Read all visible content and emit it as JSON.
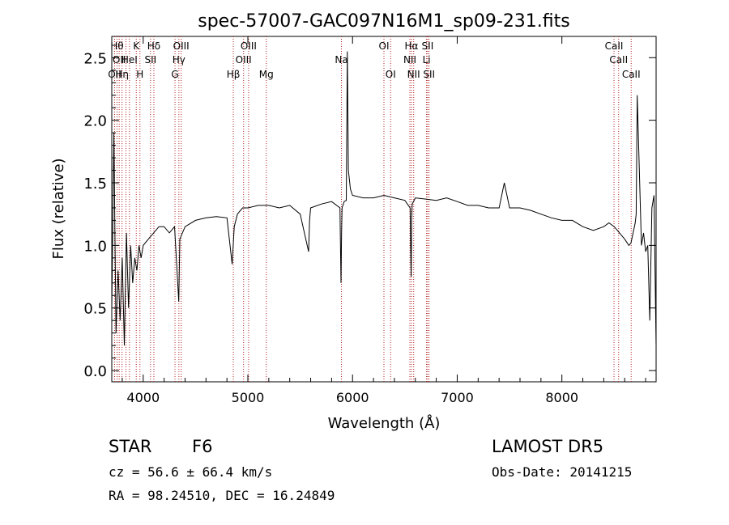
{
  "chart_data": {
    "type": "line",
    "title": "spec-57007-GAC097N16M1_sp09-231.fits",
    "xlabel": "Wavelength (Å)",
    "ylabel": "Flux (relative)",
    "xlim": [
      3700,
      8900
    ],
    "ylim": [
      -0.09,
      2.67
    ],
    "x_ticks": [
      {
        "value": 4000,
        "label": "4000"
      },
      {
        "value": 5000,
        "label": "5000"
      },
      {
        "value": 6000,
        "label": "6000"
      },
      {
        "value": 7000,
        "label": "7000"
      },
      {
        "value": 8000,
        "label": "8000"
      }
    ],
    "y_ticks": [
      {
        "value": 0.0,
        "label": "0.0"
      },
      {
        "value": 0.5,
        "label": "0.5"
      },
      {
        "value": 1.0,
        "label": "1.0"
      },
      {
        "value": 1.5,
        "label": "1.5"
      },
      {
        "value": 2.0,
        "label": "2.0"
      },
      {
        "value": 2.5,
        "label": "2.5"
      }
    ],
    "grid": false,
    "line_color": "#000000",
    "marker_color": "#b22222",
    "series": [
      {
        "x": [
          3700,
          3720,
          3740,
          3760,
          3780,
          3800,
          3820,
          3840,
          3860,
          3880,
          3900,
          3920,
          3940,
          3960,
          3980,
          4000,
          4050,
          4100,
          4150,
          4200,
          4250,
          4300,
          4330,
          4340,
          4350,
          4400,
          4500,
          4600,
          4700,
          4800,
          4850,
          4860,
          4870,
          4900,
          4950,
          5000,
          5100,
          5200,
          5300,
          5400,
          5500,
          5580,
          5590,
          5600,
          5700,
          5800,
          5880,
          5890,
          5895,
          5900,
          5920,
          5940,
          5950,
          5960,
          5980,
          6000,
          6100,
          6200,
          6300,
          6400,
          6500,
          6550,
          6560,
          6565,
          6570,
          6600,
          6700,
          6800,
          6900,
          7000,
          7100,
          7200,
          7300,
          7400,
          7450,
          7500,
          7600,
          7700,
          7800,
          7900,
          8000,
          8100,
          8200,
          8300,
          8400,
          8450,
          8500,
          8550,
          8600,
          8640,
          8660,
          8680,
          8700,
          8710,
          8720,
          8740,
          8760,
          8780,
          8800,
          8820,
          8840,
          8860,
          8880,
          8900
        ],
        "y": [
          0.5,
          1.9,
          0.3,
          0.8,
          0.4,
          0.9,
          0.2,
          1.1,
          0.5,
          1.0,
          0.7,
          0.9,
          0.8,
          1.0,
          0.9,
          1.0,
          1.05,
          1.1,
          1.15,
          1.15,
          1.1,
          1.15,
          0.7,
          0.55,
          1.05,
          1.15,
          1.2,
          1.22,
          1.23,
          1.22,
          0.85,
          1.0,
          1.15,
          1.25,
          1.3,
          1.3,
          1.32,
          1.32,
          1.3,
          1.32,
          1.25,
          0.95,
          1.2,
          1.3,
          1.33,
          1.35,
          1.3,
          0.7,
          1.1,
          1.3,
          1.35,
          1.36,
          2.55,
          1.6,
          1.45,
          1.4,
          1.38,
          1.38,
          1.4,
          1.38,
          1.36,
          1.3,
          0.75,
          1.2,
          1.33,
          1.38,
          1.37,
          1.36,
          1.38,
          1.35,
          1.32,
          1.32,
          1.3,
          1.3,
          1.5,
          1.3,
          1.3,
          1.28,
          1.25,
          1.22,
          1.2,
          1.2,
          1.15,
          1.12,
          1.15,
          1.18,
          1.15,
          1.1,
          1.05,
          1.0,
          1.02,
          1.1,
          1.18,
          1.25,
          2.2,
          1.6,
          1.0,
          1.1,
          0.95,
          1.0,
          0.4,
          1.3,
          1.4,
          0.2
        ]
      }
    ],
    "line_markers": [
      {
        "x": 3727,
        "label": "OII",
        "row": 2
      },
      {
        "x": 3750,
        "label": "Hθ",
        "row": 0
      },
      {
        "x": 3771,
        "label": "OII",
        "row": 1
      },
      {
        "x": 3798,
        "label": "Hη",
        "row": 2
      },
      {
        "x": 3835,
        "label": "",
        "row": -1
      },
      {
        "x": 3869,
        "label": "HeI",
        "row": 1
      },
      {
        "x": 3934,
        "label": "K",
        "row": 0
      },
      {
        "x": 3969,
        "label": "H",
        "row": 2
      },
      {
        "x": 4070,
        "label": "SII",
        "row": 1
      },
      {
        "x": 4102,
        "label": "Hδ",
        "row": 0
      },
      {
        "x": 4304,
        "label": "G",
        "row": 2
      },
      {
        "x": 4341,
        "label": "Hγ",
        "row": 1
      },
      {
        "x": 4363,
        "label": "OIII",
        "row": 0
      },
      {
        "x": 4861,
        "label": "Hβ",
        "row": 2
      },
      {
        "x": 4959,
        "label": "OIII",
        "row": 1
      },
      {
        "x": 5007,
        "label": "OIII",
        "row": 0
      },
      {
        "x": 5176,
        "label": "Mg",
        "row": 2
      },
      {
        "x": 5894,
        "label": "Na",
        "row": 1
      },
      {
        "x": 6300,
        "label": "OI",
        "row": 0
      },
      {
        "x": 6364,
        "label": "OI",
        "row": 2
      },
      {
        "x": 6548,
        "label": "NII",
        "row": 1
      },
      {
        "x": 6563,
        "label": "Hα",
        "row": 0
      },
      {
        "x": 6584,
        "label": "NII",
        "row": 2
      },
      {
        "x": 6707,
        "label": "Li",
        "row": 1
      },
      {
        "x": 6717,
        "label": "SII",
        "row": 0
      },
      {
        "x": 6731,
        "label": "SII",
        "row": 2
      },
      {
        "x": 8498,
        "label": "CaII",
        "row": 0
      },
      {
        "x": 8542,
        "label": "CaII",
        "row": 1
      },
      {
        "x": 8662,
        "label": "CaII",
        "row": 2
      }
    ]
  },
  "info": {
    "object_class": "STAR",
    "subclass": "F6",
    "survey": "LAMOST DR5",
    "cz_line": "cz = 56.6 ± 66.4 km/s",
    "obs_date": "Obs-Date: 20141215",
    "coords_line": "RA =  98.24510, DEC =  16.24849"
  }
}
